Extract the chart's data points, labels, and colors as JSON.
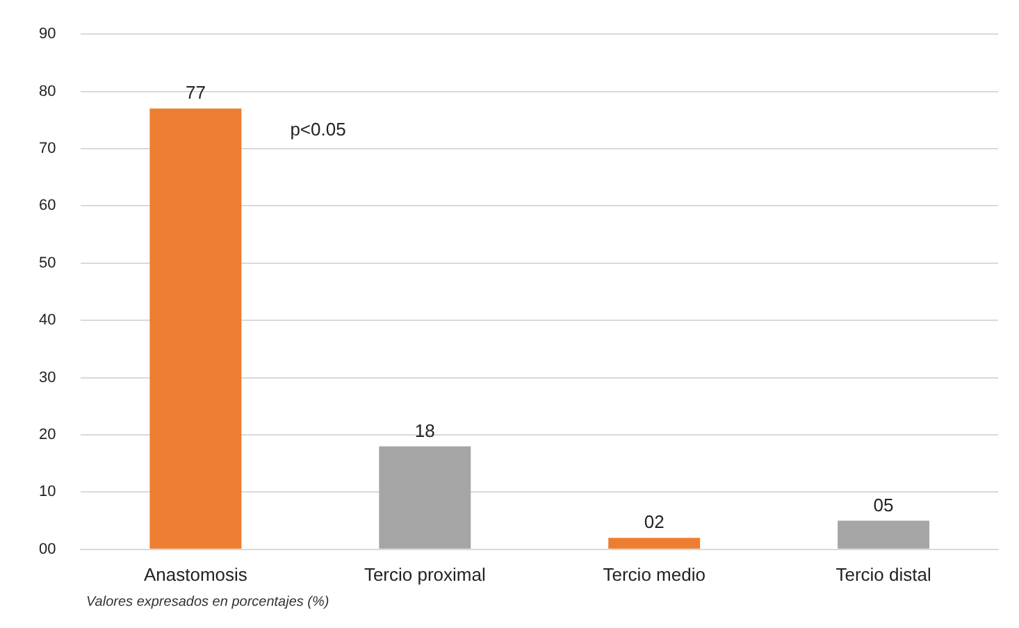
{
  "chart_data": {
    "type": "bar",
    "categories": [
      "Anastomosis",
      "Tercio proximal",
      "Tercio medio",
      "Tercio distal"
    ],
    "values": [
      77,
      18,
      2,
      5
    ],
    "colors": [
      "#ed7d31",
      "#a5a5a5",
      "#ed7d31",
      "#a5a5a5"
    ],
    "value_labels": [
      "77",
      "18",
      "02",
      "05"
    ],
    "ylim": [
      0,
      90
    ],
    "yticks": [
      {
        "value": 0,
        "label": "00"
      },
      10,
      20,
      30,
      40,
      50,
      60,
      70,
      80,
      90
    ],
    "grid": "y",
    "annotations": [
      "p<0.05",
      "Valores expresados en porcentajes (%)"
    ]
  }
}
